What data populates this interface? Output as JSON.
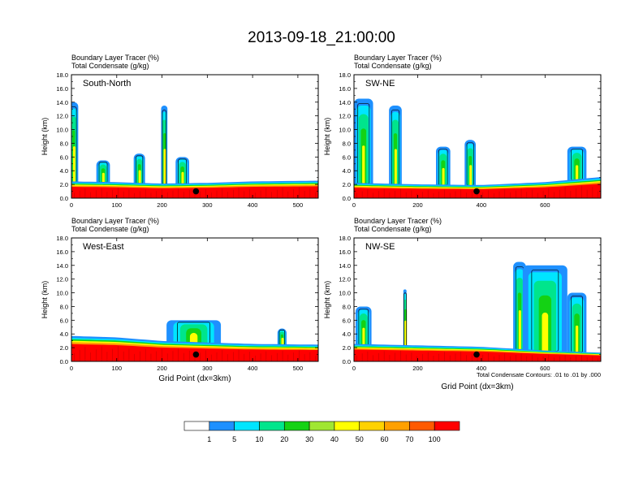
{
  "title": "2013-09-18_21:00:00",
  "colors": {
    "levels": [
      "#ffffff",
      "#1e90ff",
      "#00e5ff",
      "#00e58c",
      "#14d214",
      "#a0e632",
      "#ffff00",
      "#ffd200",
      "#ffa000",
      "#ff5a00",
      "#ff0000"
    ],
    "contour": "#000000",
    "marker": "#000000"
  },
  "colorbar": {
    "labels": [
      "1",
      "5",
      "10",
      "20",
      "30",
      "40",
      "50",
      "60",
      "70",
      "100"
    ]
  },
  "chart_data": [
    {
      "type": "heatmap",
      "panel_label": "South-North",
      "header_line1": "Boundary Layer Tracer    (%)",
      "header_line2": "Total Condensate    (g/kg)",
      "ylabel": "Height (km)",
      "xlabel": "",
      "xlim": [
        0,
        545
      ],
      "ylim": [
        0,
        18
      ],
      "x_ticks": [
        "0",
        "100",
        "200",
        "300",
        "400",
        "500"
      ],
      "y_ticks": [
        "0.0",
        "2.0",
        "4.0",
        "6.0",
        "8.0",
        "10.0",
        "12.0",
        "14.0",
        "16.0",
        "18.0"
      ],
      "boundary_layer_top_km": [
        [
          0,
          2.3
        ],
        [
          100,
          2.2
        ],
        [
          200,
          2.0
        ],
        [
          300,
          2.1
        ],
        [
          400,
          2.3
        ],
        [
          545,
          2.4
        ]
      ],
      "convective_plumes": [
        {
          "x": 5,
          "top_km": 14.0,
          "width": 20
        },
        {
          "x": 70,
          "top_km": 5.5,
          "width": 30
        },
        {
          "x": 150,
          "top_km": 6.5,
          "width": 25
        },
        {
          "x": 205,
          "top_km": 13.5,
          "width": 14
        },
        {
          "x": 245,
          "top_km": 6.0,
          "width": 30
        }
      ],
      "marker": {
        "x": 275,
        "height_km": 1.0
      }
    },
    {
      "type": "heatmap",
      "panel_label": "SW-NE",
      "header_line1": "Boundary Layer Tracer    (%)",
      "header_line2": "Total Condensate    (g/kg)",
      "ylabel": "Height (km)",
      "xlabel": "",
      "xlim": [
        0,
        775
      ],
      "ylim": [
        0,
        18
      ],
      "x_ticks": [
        "0",
        "200",
        "400",
        "600"
      ],
      "y_ticks": [
        "0.0",
        "2.0",
        "4.0",
        "6.0",
        "8.0",
        "10.0",
        "12.0",
        "14.0",
        "16.0",
        "18.0"
      ],
      "boundary_layer_top_km": [
        [
          0,
          2.1
        ],
        [
          200,
          1.9
        ],
        [
          400,
          1.8
        ],
        [
          600,
          2.2
        ],
        [
          775,
          2.9
        ]
      ],
      "convective_plumes": [
        {
          "x": 30,
          "top_km": 14.5,
          "width": 60
        },
        {
          "x": 130,
          "top_km": 13.5,
          "width": 40
        },
        {
          "x": 280,
          "top_km": 7.5,
          "width": 45
        },
        {
          "x": 365,
          "top_km": 8.5,
          "width": 35
        },
        {
          "x": 700,
          "top_km": 7.5,
          "width": 60
        }
      ],
      "marker": {
        "x": 385,
        "height_km": 1.0
      }
    },
    {
      "type": "heatmap",
      "panel_label": "West-East",
      "header_line1": "Boundary Layer Tracer    (%)",
      "header_line2": "Total Condensate    (g/kg)",
      "ylabel": "Height (km)",
      "xlabel": "Grid Point (dx=3km)",
      "xlim": [
        0,
        545
      ],
      "ylim": [
        0,
        18
      ],
      "x_ticks": [
        "0",
        "100",
        "200",
        "300",
        "400",
        "500"
      ],
      "y_ticks": [
        "0.0",
        "2.0",
        "4.0",
        "6.0",
        "8.0",
        "10.0",
        "12.0",
        "14.0",
        "16.0",
        "18.0"
      ],
      "boundary_layer_top_km": [
        [
          0,
          3.5
        ],
        [
          100,
          3.3
        ],
        [
          200,
          2.8
        ],
        [
          300,
          2.6
        ],
        [
          400,
          2.4
        ],
        [
          545,
          2.3
        ]
      ],
      "convective_plumes": [
        {
          "x": 270,
          "top_km": 6.0,
          "width": 120
        },
        {
          "x": 465,
          "top_km": 4.8,
          "width": 20
        }
      ],
      "marker": {
        "x": 275,
        "height_km": 1.0
      }
    },
    {
      "type": "heatmap",
      "panel_label": "NW-SE",
      "header_line1": "Boundary Layer Tracer    (%)",
      "header_line2": "Total Condensate    (g/kg)",
      "ylabel": "Height (km)",
      "xlabel": "Grid Point (dx=3km)",
      "contour_note": "Total Condensate Contours: .01 to .01 by .000",
      "xlim": [
        0,
        775
      ],
      "ylim": [
        0,
        18
      ],
      "x_ticks": [
        "0",
        "200",
        "400",
        "600"
      ],
      "y_ticks": [
        "0.0",
        "2.0",
        "4.0",
        "6.0",
        "8.0",
        "10.0",
        "12.0",
        "14.0",
        "16.0",
        "18.0"
      ],
      "boundary_layer_top_km": [
        [
          0,
          2.4
        ],
        [
          200,
          2.2
        ],
        [
          400,
          2.0
        ],
        [
          600,
          1.5
        ],
        [
          775,
          1.2
        ]
      ],
      "convective_plumes": [
        {
          "x": 30,
          "top_km": 8.0,
          "width": 50
        },
        {
          "x": 160,
          "top_km": 10.5,
          "width": 10
        },
        {
          "x": 520,
          "top_km": 14.5,
          "width": 40
        },
        {
          "x": 600,
          "top_km": 14.0,
          "width": 140
        },
        {
          "x": 700,
          "top_km": 10.0,
          "width": 60
        }
      ],
      "marker": {
        "x": 385,
        "height_km": 1.0
      }
    }
  ]
}
